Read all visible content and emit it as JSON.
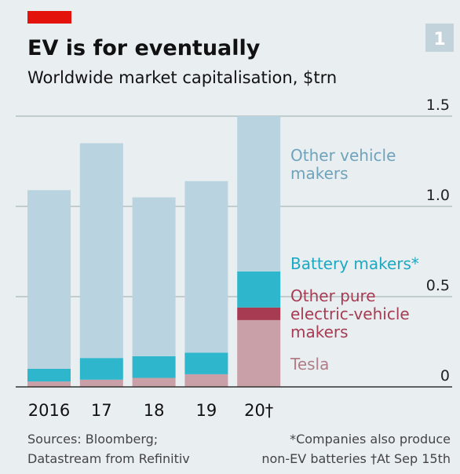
{
  "chart_data": {
    "type": "stacked_bar",
    "title": "EV is for eventually",
    "subtitle": "Worldwide market capitalisation, $trn",
    "badge": "1",
    "categories": [
      "2016",
      "17",
      "18",
      "19",
      "20†"
    ],
    "series": [
      {
        "name": "Tesla",
        "color": "#c9a0a8",
        "values": [
          0.03,
          0.04,
          0.05,
          0.07,
          0.37
        ]
      },
      {
        "name": "Other pure electric-vehicle makers",
        "color": "#a63b52",
        "values": [
          0,
          0,
          0,
          0,
          0.07
        ]
      },
      {
        "name": "Battery makers*",
        "color": "#2db6cc",
        "values": [
          0.07,
          0.12,
          0.12,
          0.12,
          0.2
        ]
      },
      {
        "name": "Other vehicle makers",
        "color": "#b9d4e0",
        "values": [
          0.99,
          1.19,
          0.88,
          0.95,
          0.86
        ]
      }
    ],
    "ylim": [
      0,
      1.5
    ],
    "yticks": [
      0,
      0.5,
      {
        "value": 1,
        "label": "1.0"
      },
      1.5
    ],
    "grid": true,
    "sources": [
      "Sources: Bloomberg;",
      "Datastream from Refinitiv"
    ],
    "notes": [
      "*Companies also produce",
      "non-EV batteries   †At Sep 15th"
    ]
  }
}
